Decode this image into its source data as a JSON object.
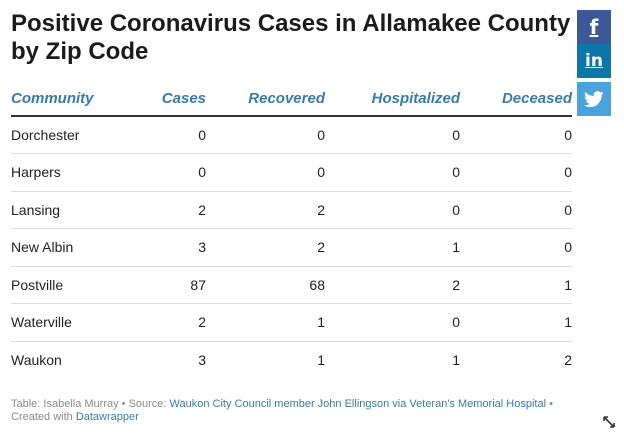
{
  "title": "Positive Coronavirus Cases in Allamakee County by Zip Code",
  "table": {
    "headers": [
      "Community",
      "Cases",
      "Recovered",
      "Hospitalized",
      "Deceased"
    ],
    "rows": [
      [
        "Dorchester",
        "0",
        "0",
        "0",
        "0"
      ],
      [
        "Harpers",
        "0",
        "0",
        "0",
        "0"
      ],
      [
        "Lansing",
        "2",
        "2",
        "0",
        "0"
      ],
      [
        "New Albin",
        "3",
        "2",
        "1",
        "0"
      ],
      [
        "Postville",
        "87",
        "68",
        "2",
        "1"
      ],
      [
        "Waterville",
        "2",
        "1",
        "0",
        "1"
      ],
      [
        "Waukon",
        "3",
        "1",
        "1",
        "2"
      ]
    ]
  },
  "footer": {
    "table_credit": "Table: Isabella Murray",
    "sep1": " • Source: ",
    "source_link": "Waukon City Council member John Ellingson via Veteran's Memorial Hospital",
    "sep2": " • Created with ",
    "created_with_link": "Datawrapper"
  },
  "share": {
    "facebook_label": "f",
    "linkedin_label": "in",
    "twitter_icon": "twitter-icon"
  },
  "colors": {
    "header_text": "#3a7aaa",
    "facebook": "#3b5998",
    "linkedin": "#0e76a8",
    "twitter": "#4ba3dd"
  }
}
